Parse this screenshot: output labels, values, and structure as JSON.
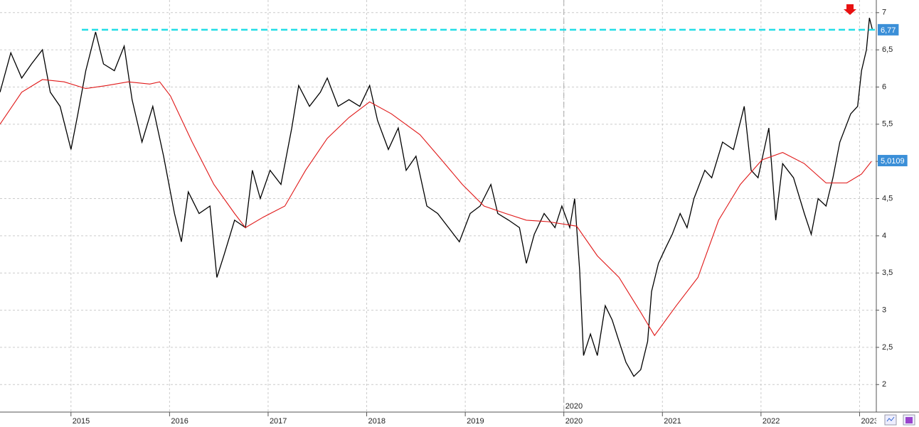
{
  "chart_data": {
    "type": "line",
    "xlim": [
      2014.28,
      2023.17
    ],
    "ylim": [
      1.63,
      7.17
    ],
    "xticks": [
      2015,
      2016,
      2017,
      2018,
      2019,
      2020,
      2021,
      2022,
      2023
    ],
    "yticks": [
      2,
      {
        "value": 2.5,
        "label": "2,5"
      },
      3,
      {
        "value": 3.5,
        "label": "3,5"
      },
      4,
      {
        "value": 4.5,
        "label": "4,5"
      },
      5,
      {
        "value": 5.5,
        "label": "5,5"
      },
      6,
      {
        "value": 6.5,
        "label": "6,5"
      },
      7
    ],
    "grid": true,
    "series": [
      {
        "color": "#000000",
        "x": [
          2014.28,
          2014.39,
          2014.5,
          2014.6,
          2014.71,
          2014.79,
          2014.89,
          2015.0,
          2015.07,
          2015.15,
          2015.25,
          2015.33,
          2015.44,
          2015.54,
          2015.62,
          2015.72,
          2015.83,
          2015.94,
          2016.05,
          2016.12,
          2016.19,
          2016.3,
          2016.41,
          2016.48,
          2016.55,
          2016.66,
          2016.77,
          2016.84,
          2016.92,
          2017.02,
          2017.13,
          2017.24,
          2017.31,
          2017.42,
          2017.53,
          2017.6,
          2017.71,
          2017.82,
          2017.93,
          2018.03,
          2018.11,
          2018.22,
          2018.32,
          2018.4,
          2018.5,
          2018.61,
          2018.72,
          2018.83,
          2018.94,
          2019.05,
          2019.15,
          2019.26,
          2019.33,
          2019.44,
          2019.55,
          2019.62,
          2019.7,
          2019.8,
          2019.91,
          2019.98,
          2020.06,
          2020.11,
          2020.16,
          2020.2,
          2020.27,
          2020.34,
          2020.42,
          2020.49,
          2020.56,
          2020.63,
          2020.71,
          2020.78,
          2020.85,
          2020.89,
          2020.96,
          2021.03,
          2021.1,
          2021.18,
          2021.25,
          2021.32,
          2021.43,
          2021.5,
          2021.61,
          2021.72,
          2021.83,
          2021.9,
          2021.97,
          2022.08,
          2022.15,
          2022.22,
          2022.33,
          2022.44,
          2022.51,
          2022.58,
          2022.66,
          2022.73,
          2022.8,
          2022.91,
          2022.98,
          2023.02,
          2023.07,
          2023.1,
          2023.13
        ],
        "values": [
          5.93,
          6.46,
          6.12,
          6.31,
          6.5,
          5.93,
          5.74,
          5.16,
          5.64,
          6.22,
          6.74,
          6.31,
          6.22,
          6.55,
          5.83,
          5.26,
          5.74,
          5.07,
          4.3,
          3.92,
          4.59,
          4.3,
          4.4,
          3.44,
          3.73,
          4.21,
          4.11,
          4.88,
          4.5,
          4.88,
          4.69,
          5.45,
          6.02,
          5.74,
          5.93,
          6.12,
          5.74,
          5.83,
          5.74,
          6.02,
          5.55,
          5.16,
          5.45,
          4.88,
          5.07,
          4.4,
          4.3,
          4.11,
          3.92,
          4.3,
          4.4,
          4.69,
          4.3,
          4.21,
          4.11,
          3.63,
          4.02,
          4.3,
          4.11,
          4.4,
          4.11,
          4.5,
          3.54,
          2.39,
          2.68,
          2.39,
          3.06,
          2.87,
          2.58,
          2.3,
          2.11,
          2.2,
          2.58,
          3.25,
          3.63,
          3.83,
          4.02,
          4.3,
          4.11,
          4.5,
          4.88,
          4.78,
          5.26,
          5.16,
          5.74,
          4.88,
          4.78,
          5.45,
          4.21,
          4.97,
          4.78,
          4.3,
          4.02,
          4.5,
          4.4,
          4.78,
          5.26,
          5.64,
          5.74,
          6.22,
          6.5,
          6.93,
          6.77
        ]
      },
      {
        "color": "#e01818",
        "x": [
          2014.28,
          2014.5,
          2014.71,
          2014.93,
          2015.15,
          2015.36,
          2015.58,
          2015.8,
          2015.9,
          2016.01,
          2016.23,
          2016.45,
          2016.66,
          2016.77,
          2016.95,
          2017.17,
          2017.38,
          2017.6,
          2017.82,
          2018.03,
          2018.25,
          2018.54,
          2018.76,
          2018.97,
          2019.19,
          2019.41,
          2019.62,
          2019.84,
          2020.13,
          2020.34,
          2020.56,
          2020.78,
          2020.92,
          2021.14,
          2021.36,
          2021.57,
          2021.79,
          2022.01,
          2022.22,
          2022.44,
          2022.66,
          2022.87,
          2023.02,
          2023.12
        ],
        "values": [
          5.5,
          5.93,
          6.1,
          6.07,
          5.98,
          6.02,
          6.07,
          6.04,
          6.07,
          5.88,
          5.26,
          4.69,
          4.3,
          4.11,
          4.25,
          4.4,
          4.88,
          5.31,
          5.59,
          5.8,
          5.64,
          5.36,
          5.02,
          4.69,
          4.4,
          4.3,
          4.21,
          4.19,
          4.13,
          3.73,
          3.44,
          2.97,
          2.66,
          3.06,
          3.44,
          4.21,
          4.69,
          5.02,
          5.12,
          4.97,
          4.71,
          4.71,
          4.83,
          5.0
        ]
      }
    ],
    "hline": {
      "value": 6.77,
      "x_start": 2015.11,
      "color": "#22dde6"
    },
    "vline": 2020,
    "price_labels": [
      {
        "value": 6.77,
        "label": "6,77",
        "color": "#3b8fd8"
      },
      {
        "value": 5.0109,
        "label": "5,0109",
        "color": "#3b8fd8"
      }
    ]
  }
}
